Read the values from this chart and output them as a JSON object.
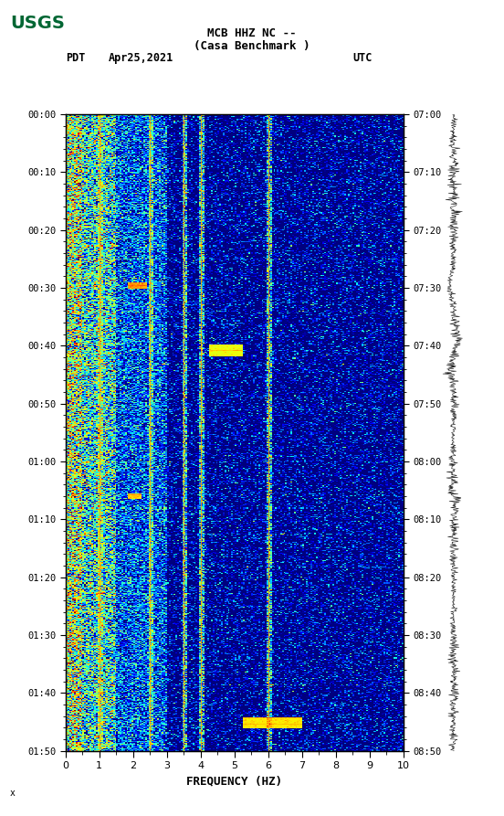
{
  "title_line1": "MCB HHZ NC --",
  "title_line2": "(Casa Benchmark )",
  "left_label": "PDT",
  "date_label": "Apr25,2021",
  "right_label": "UTC",
  "freq_min": 0,
  "freq_max": 10,
  "freq_label": "FREQUENCY (HZ)",
  "time_start_left": "00:00",
  "time_end_left": "01:50",
  "time_start_right": "07:00",
  "time_end_right": "08:50",
  "time_tick_interval_min": 10,
  "vertical_lines_freq": [
    1.0,
    2.5,
    3.5,
    4.0,
    6.0
  ],
  "bg_color": "#ffffff",
  "spectrogram_cmap": "jet",
  "usgs_color": "#006633"
}
